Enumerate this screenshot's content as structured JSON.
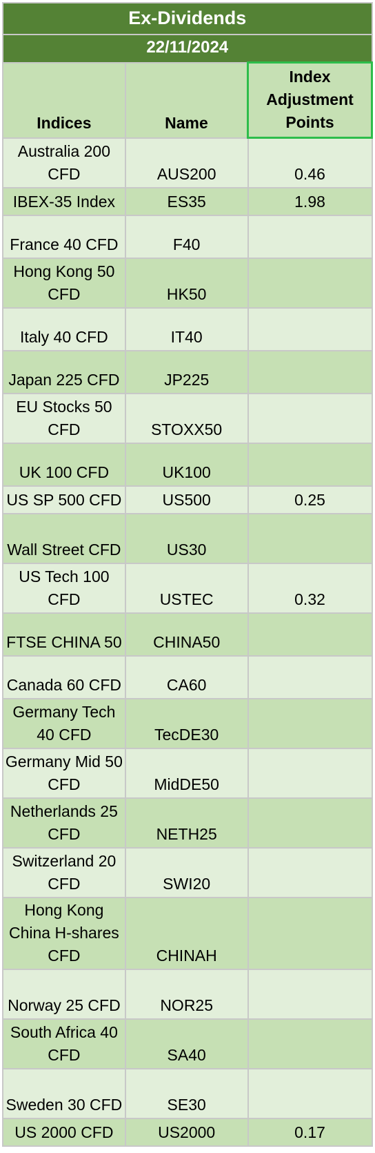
{
  "title": "Ex-Dividends",
  "date": "22/11/2024",
  "columns": {
    "indices": "Indices",
    "name": "Name",
    "points": "Index Adjustment Points"
  },
  "rows": [
    {
      "index": "Australia 200 CFD",
      "symbol": "AUS200",
      "points": "0.46"
    },
    {
      "index": "IBEX-35 Index",
      "symbol": "ES35",
      "points": "1.98"
    },
    {
      "index": "France 40 CFD",
      "symbol": "F40",
      "points": ""
    },
    {
      "index": "Hong Kong 50 CFD",
      "symbol": "HK50",
      "points": ""
    },
    {
      "index": "Italy 40 CFD",
      "symbol": "IT40",
      "points": ""
    },
    {
      "index": "Japan 225 CFD",
      "symbol": "JP225",
      "points": ""
    },
    {
      "index": "EU Stocks 50 CFD",
      "symbol": "STOXX50",
      "points": ""
    },
    {
      "index": "UK 100 CFD",
      "symbol": "UK100",
      "points": ""
    },
    {
      "index": "US SP 500 CFD",
      "symbol": "US500",
      "points": "0.25"
    },
    {
      "index": "Wall Street CFD",
      "symbol": "US30",
      "points": ""
    },
    {
      "index": "US Tech 100 CFD",
      "symbol": "USTEC",
      "points": "0.32"
    },
    {
      "index": "FTSE CHINA 50",
      "symbol": "CHINA50",
      "points": ""
    },
    {
      "index": "Canada 60 CFD",
      "symbol": "CA60",
      "points": ""
    },
    {
      "index": "Germany Tech 40 CFD",
      "symbol": "TecDE30",
      "points": ""
    },
    {
      "index": "Germany Mid 50 CFD",
      "symbol": "MidDE50",
      "points": ""
    },
    {
      "index": "Netherlands 25 CFD",
      "symbol": "NETH25",
      "points": ""
    },
    {
      "index": "Switzerland 20 CFD",
      "symbol": "SWI20",
      "points": ""
    },
    {
      "index": "Hong Kong China H-shares CFD",
      "symbol": "CHINAH",
      "points": ""
    },
    {
      "index": "Norway 25 CFD",
      "symbol": "NOR25",
      "points": ""
    },
    {
      "index": "South Africa 40 CFD",
      "symbol": "SA40",
      "points": ""
    },
    {
      "index": "Sweden 30 CFD",
      "symbol": "SE30",
      "points": ""
    },
    {
      "index": "US 2000 CFD",
      "symbol": "US2000",
      "points": "0.17"
    }
  ]
}
